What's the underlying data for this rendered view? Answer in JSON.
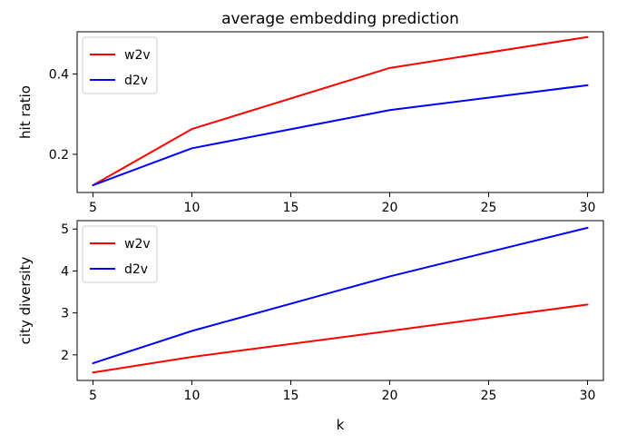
{
  "chart_data": [
    {
      "type": "line",
      "title": "average embedding prediction",
      "xlabel": "",
      "ylabel": "hit ratio",
      "x": [
        5,
        10,
        20,
        30
      ],
      "xlim": [
        4.2,
        30.8
      ],
      "ylim": [
        0.105,
        0.505
      ],
      "xticks": [
        "5",
        "10",
        "15",
        "20",
        "25",
        "30"
      ],
      "yticks": [
        "0.2",
        "0.4"
      ],
      "legend": "upper left",
      "series": [
        {
          "name": "w2v",
          "color": "#ff0000",
          "values": [
            0.123,
            0.263,
            0.415,
            0.492
          ]
        },
        {
          "name": "d2v",
          "color": "#0000ff",
          "values": [
            0.123,
            0.215,
            0.31,
            0.372
          ]
        }
      ]
    },
    {
      "type": "line",
      "title": "",
      "xlabel": "k",
      "ylabel": "city diversity",
      "x": [
        5,
        10,
        20,
        30
      ],
      "xlim": [
        4.2,
        30.8
      ],
      "ylim": [
        1.39,
        5.2
      ],
      "xticks": [
        "5",
        "10",
        "15",
        "20",
        "25",
        "30"
      ],
      "yticks": [
        "2",
        "3",
        "4",
        "5"
      ],
      "legend": "upper left",
      "series": [
        {
          "name": "w2v",
          "color": "#ff0000",
          "values": [
            1.58,
            1.95,
            2.57,
            3.2
          ]
        },
        {
          "name": "d2v",
          "color": "#0000ff",
          "values": [
            1.8,
            2.57,
            3.87,
            5.03
          ]
        }
      ]
    }
  ]
}
